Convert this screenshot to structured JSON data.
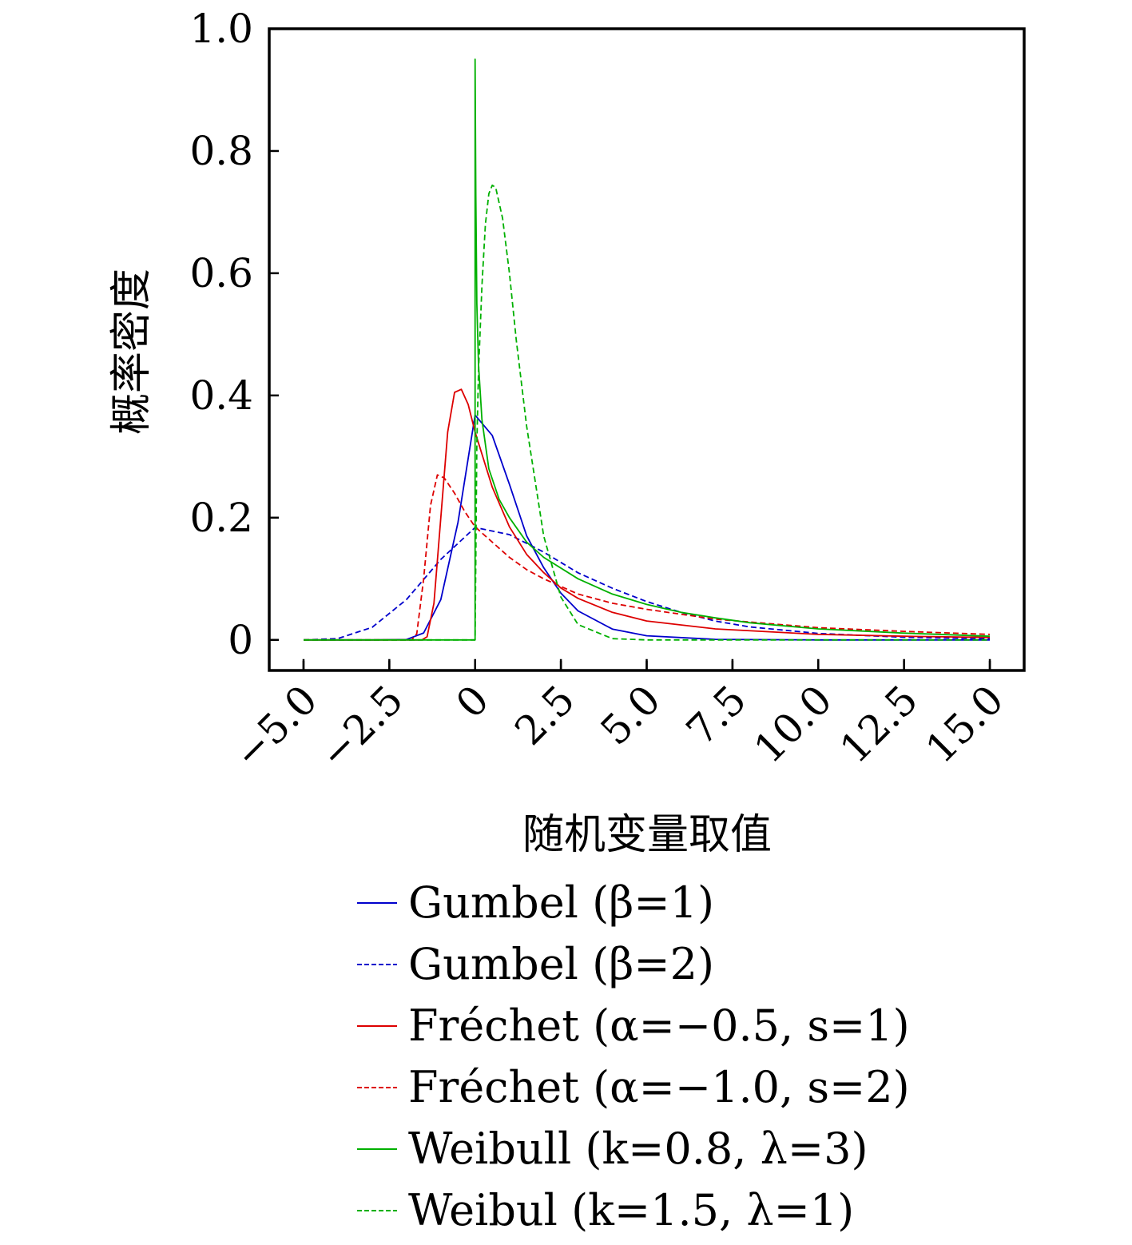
{
  "chart_data": {
    "type": "line",
    "xlabel": "随机变量取值",
    "ylabel": "概率密度",
    "xlim": [
      -6.0,
      16.0
    ],
    "ylim": [
      -0.05,
      1.0
    ],
    "x_ticks": [
      -5.0,
      -2.5,
      0,
      2.5,
      5.0,
      7.5,
      10.0,
      12.5,
      15.0
    ],
    "x_tick_labels": [
      "−5.0",
      "−2.5",
      "0",
      "2.5",
      "5.0",
      "7.5",
      "10.0",
      "12.5",
      "15.0"
    ],
    "y_ticks": [
      0,
      0.2,
      0.4,
      0.6,
      0.8,
      1.0
    ],
    "y_tick_labels": [
      "0",
      "0.2",
      "0.4",
      "0.6",
      "0.8",
      "1.0"
    ],
    "grid": false,
    "legend_position": "below",
    "series": [
      {
        "name": "Gumbel (β=1)",
        "color": "#0000cc",
        "dash": "solid",
        "points": [
          [
            -5,
            0
          ],
          [
            -3,
            0
          ],
          [
            -2,
            0.0006
          ],
          [
            -1.5,
            0.0113
          ],
          [
            -1,
            0.066
          ],
          [
            -0.5,
            0.1923
          ],
          [
            0,
            0.3679
          ],
          [
            0.5,
            0.3345
          ],
          [
            1,
            0.2546
          ],
          [
            1.5,
            0.1704
          ],
          [
            2,
            0.1182
          ],
          [
            2.5,
            0.0766
          ],
          [
            3,
            0.0474
          ],
          [
            4,
            0.0177
          ],
          [
            5,
            0.0067
          ],
          [
            7,
            0.0009
          ],
          [
            10,
            0
          ],
          [
            15,
            0
          ]
        ]
      },
      {
        "name": "Gumbel (β=2)",
        "color": "#0000cc",
        "dash": "dashed",
        "points": [
          [
            -5,
            0
          ],
          [
            -4,
            0.0022
          ],
          [
            -3,
            0.0206
          ],
          [
            -2,
            0.066
          ],
          [
            -1,
            0.1318
          ],
          [
            0,
            0.1839
          ],
          [
            1,
            0.1723
          ],
          [
            2,
            0.1437
          ],
          [
            3,
            0.1098
          ],
          [
            4,
            0.0845
          ],
          [
            5,
            0.0627
          ],
          [
            6,
            0.0451
          ],
          [
            7,
            0.0308
          ],
          [
            8,
            0.0213
          ],
          [
            10,
            0.0106
          ],
          [
            12.5,
            0.0043
          ],
          [
            15,
            0.0019
          ]
        ]
      },
      {
        "name": "Fréchet (α=−0.5, s=1)",
        "color": "#dd0000",
        "dash": "solid",
        "points": [
          [
            -5,
            0
          ],
          [
            -1.55,
            0
          ],
          [
            -1.4,
            0.005
          ],
          [
            -1.2,
            0.06
          ],
          [
            -1,
            0.2
          ],
          [
            -0.8,
            0.34
          ],
          [
            -0.6,
            0.405
          ],
          [
            -0.4,
            0.41
          ],
          [
            -0.2,
            0.385
          ],
          [
            0,
            0.34
          ],
          [
            0.5,
            0.25
          ],
          [
            1,
            0.185
          ],
          [
            1.5,
            0.14
          ],
          [
            2,
            0.11
          ],
          [
            2.5,
            0.085
          ],
          [
            3,
            0.068
          ],
          [
            4,
            0.045
          ],
          [
            5,
            0.031
          ],
          [
            7,
            0.018
          ],
          [
            10,
            0.009
          ],
          [
            12.5,
            0.006
          ],
          [
            15,
            0.004
          ]
        ]
      },
      {
        "name": "Fréchet (α=−1.0, s=2)",
        "color": "#dd0000",
        "dash": "dashed",
        "points": [
          [
            -5,
            0
          ],
          [
            -1.85,
            0
          ],
          [
            -1.7,
            0.01
          ],
          [
            -1.5,
            0.1
          ],
          [
            -1.3,
            0.22
          ],
          [
            -1.1,
            0.27
          ],
          [
            -0.9,
            0.265
          ],
          [
            -0.6,
            0.24
          ],
          [
            -0.3,
            0.21
          ],
          [
            0,
            0.185
          ],
          [
            0.5,
            0.16
          ],
          [
            1,
            0.135
          ],
          [
            1.5,
            0.115
          ],
          [
            2,
            0.1
          ],
          [
            3,
            0.075
          ],
          [
            4,
            0.06
          ],
          [
            5,
            0.05
          ],
          [
            7,
            0.034
          ],
          [
            10,
            0.02
          ],
          [
            12.5,
            0.014
          ],
          [
            15,
            0.009
          ]
        ]
      },
      {
        "name": "Weibull (k=0.8, λ=3)",
        "color": "#00b000",
        "dash": "solid",
        "points": [
          [
            -5,
            0
          ],
          [
            0,
            0
          ],
          [
            0,
            0.95
          ],
          [
            0.02,
            0.73
          ],
          [
            0.05,
            0.55
          ],
          [
            0.1,
            0.45
          ],
          [
            0.2,
            0.36
          ],
          [
            0.4,
            0.28
          ],
          [
            0.7,
            0.23
          ],
          [
            1,
            0.2
          ],
          [
            1.5,
            0.16
          ],
          [
            2,
            0.135
          ],
          [
            3,
            0.1
          ],
          [
            4,
            0.075
          ],
          [
            5,
            0.058
          ],
          [
            6,
            0.045
          ],
          [
            7,
            0.036
          ],
          [
            8,
            0.028
          ],
          [
            10,
            0.018
          ],
          [
            12.5,
            0.011
          ],
          [
            15,
            0.006
          ]
        ]
      },
      {
        "name": "Weibul (k=1.5, λ=1)",
        "color": "#00b000",
        "dash": "dashed",
        "points": [
          [
            -5,
            0
          ],
          [
            0,
            0
          ],
          [
            0.05,
            0.32
          ],
          [
            0.1,
            0.44
          ],
          [
            0.2,
            0.58
          ],
          [
            0.3,
            0.68
          ],
          [
            0.4,
            0.73
          ],
          [
            0.5,
            0.744
          ],
          [
            0.6,
            0.74
          ],
          [
            0.8,
            0.69
          ],
          [
            1,
            0.6
          ],
          [
            1.2,
            0.49
          ],
          [
            1.5,
            0.35
          ],
          [
            2,
            0.17
          ],
          [
            2.5,
            0.07
          ],
          [
            3,
            0.025
          ],
          [
            4,
            0.002
          ],
          [
            5,
            0
          ],
          [
            15,
            0
          ]
        ]
      }
    ]
  }
}
